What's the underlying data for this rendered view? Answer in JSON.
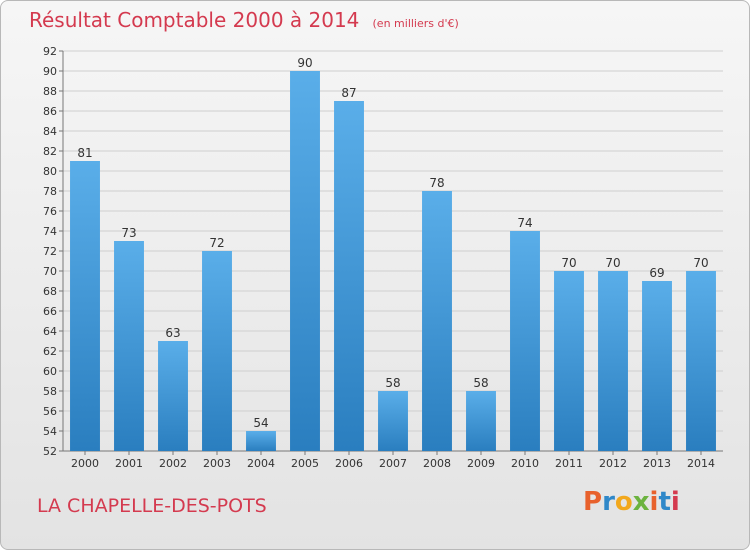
{
  "header": {
    "title": "Résultat Comptable 2000 à 2014",
    "subtitle": "(en milliers d'€)"
  },
  "footer": {
    "commune": "LA CHAPELLE-DES-POTS",
    "logo_text": "Proxiti",
    "logo_colors": [
      "#e8612c",
      "#2f88c9",
      "#f2a81d",
      "#6cb33f",
      "#e8612c",
      "#2f88c9",
      "#d43a4f"
    ]
  },
  "colors": {
    "bar_light": "#5aaee9",
    "bar_dark": "#2a7ebf",
    "title": "#d43a4f"
  },
  "chart_data": {
    "type": "bar",
    "categories": [
      "2000",
      "2001",
      "2002",
      "2003",
      "2004",
      "2005",
      "2006",
      "2007",
      "2008",
      "2009",
      "2010",
      "2011",
      "2012",
      "2013",
      "2014"
    ],
    "values": [
      81,
      73,
      63,
      72,
      54,
      90,
      87,
      58,
      78,
      58,
      74,
      70,
      70,
      69,
      70
    ],
    "data_labels": [
      "81",
      "73",
      "63",
      "72",
      "54",
      "90",
      "87",
      "58",
      "78",
      "58",
      "74",
      "70",
      "70",
      "69",
      "70"
    ],
    "title": "Résultat Comptable 2000 à 2014",
    "xlabel": "",
    "ylabel": "",
    "ylim": [
      52,
      92
    ],
    "yticks": [
      52,
      54,
      56,
      58,
      60,
      62,
      64,
      66,
      68,
      70,
      72,
      74,
      76,
      78,
      80,
      82,
      84,
      86,
      88,
      90,
      92
    ],
    "ytick_labels": [
      "52",
      "54",
      "56",
      "58",
      "60",
      "62",
      "64",
      "66",
      "68",
      "70",
      "72",
      "74",
      "76",
      "78",
      "80",
      "82",
      "84",
      "86",
      "88",
      "90",
      "92"
    ],
    "grid": true
  }
}
